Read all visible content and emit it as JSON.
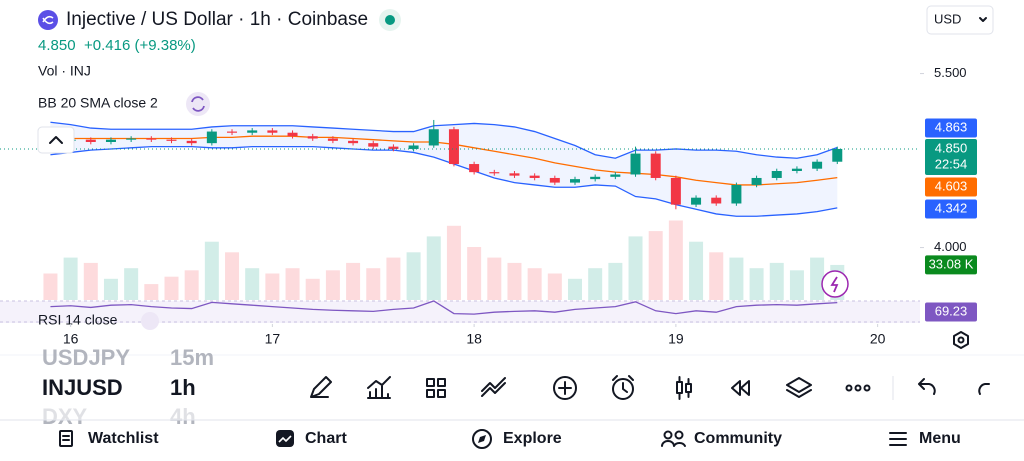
{
  "header": {
    "title": "Injective / US Dollar · 1h · Coinbase",
    "price": "4.850",
    "change": "+0.416 (+9.38%)",
    "currency": "USD"
  },
  "chart_data": {
    "type": "candlestick",
    "indicators": [
      "Vol · INJ",
      "BB 20 SMA close 2",
      "RSI 14 close"
    ],
    "x": [
      15.9,
      16.0,
      16.1,
      16.2,
      16.3,
      16.4,
      16.5,
      16.6,
      16.7,
      16.8,
      16.9,
      17.0,
      17.1,
      17.2,
      17.3,
      17.4,
      17.5,
      17.6,
      17.7,
      17.8,
      17.9,
      18.0,
      18.1,
      18.2,
      18.3,
      18.4,
      18.5,
      18.6,
      18.7,
      18.8,
      18.9,
      19.0,
      19.1,
      19.2,
      19.3,
      19.4,
      19.5,
      19.6,
      19.7,
      19.8
    ],
    "open": [
      4.93,
      4.92,
      4.93,
      4.91,
      4.93,
      4.94,
      4.93,
      4.92,
      4.9,
      5.0,
      4.99,
      5.01,
      4.99,
      4.96,
      4.94,
      4.92,
      4.9,
      4.87,
      4.85,
      4.88,
      5.02,
      4.72,
      4.65,
      4.64,
      4.62,
      4.6,
      4.56,
      4.59,
      4.61,
      4.63,
      4.81,
      4.6,
      4.37,
      4.43,
      4.38,
      4.54,
      4.6,
      4.66,
      4.68,
      4.74
    ],
    "high": [
      4.95,
      4.95,
      4.95,
      4.95,
      4.96,
      4.96,
      4.95,
      4.94,
      5.02,
      5.02,
      5.03,
      5.03,
      5.01,
      4.98,
      4.96,
      4.94,
      4.92,
      4.89,
      4.9,
      5.1,
      5.04,
      4.74,
      4.67,
      4.66,
      4.64,
      4.62,
      4.61,
      4.63,
      4.65,
      4.87,
      4.83,
      4.62,
      4.45,
      4.45,
      4.56,
      4.62,
      4.68,
      4.7,
      4.76,
      4.87
    ],
    "low": [
      4.9,
      4.9,
      4.89,
      4.89,
      4.91,
      4.91,
      4.9,
      4.88,
      4.88,
      4.97,
      4.97,
      4.97,
      4.94,
      4.92,
      4.9,
      4.88,
      4.85,
      4.83,
      4.83,
      4.86,
      4.7,
      4.63,
      4.62,
      4.6,
      4.58,
      4.54,
      4.54,
      4.57,
      4.59,
      4.61,
      4.58,
      4.33,
      4.35,
      4.36,
      4.36,
      4.52,
      4.58,
      4.64,
      4.66,
      4.72
    ],
    "close": [
      4.92,
      4.93,
      4.91,
      4.93,
      4.94,
      4.93,
      4.92,
      4.9,
      5.0,
      4.99,
      5.01,
      4.99,
      4.96,
      4.94,
      4.92,
      4.9,
      4.87,
      4.85,
      4.88,
      5.02,
      4.72,
      4.65,
      4.64,
      4.62,
      4.6,
      4.56,
      4.59,
      4.61,
      4.63,
      4.81,
      4.6,
      4.37,
      4.43,
      4.38,
      4.54,
      4.6,
      4.66,
      4.68,
      4.74,
      4.85
    ],
    "close_label": "4.850",
    "countdown": "22:54",
    "volume": [
      25,
      40,
      35,
      20,
      30,
      15,
      22,
      28,
      55,
      45,
      30,
      25,
      30,
      20,
      28,
      35,
      30,
      40,
      45,
      60,
      70,
      50,
      40,
      35,
      30,
      25,
      20,
      30,
      35,
      60,
      65,
      75,
      55,
      45,
      40,
      30,
      35,
      28,
      40,
      33.08
    ],
    "volume_label": "33.08 K",
    "bb": {
      "upper": [
        5.08,
        5.06,
        5.03,
        5.02,
        5.02,
        5.02,
        5.02,
        5.02,
        5.04,
        5.05,
        5.05,
        5.05,
        5.05,
        5.04,
        5.03,
        5.02,
        5.01,
        5.0,
        5.0,
        5.05,
        5.06,
        5.07,
        5.06,
        5.04,
        5.0,
        4.94,
        4.88,
        4.8,
        4.77,
        4.84,
        4.84,
        4.85,
        4.84,
        4.84,
        4.83,
        4.8,
        4.78,
        4.77,
        4.8,
        4.863
      ],
      "middle": [
        4.94,
        4.94,
        4.94,
        4.94,
        4.94,
        4.94,
        4.94,
        4.94,
        4.95,
        4.95,
        4.96,
        4.96,
        4.96,
        4.95,
        4.95,
        4.94,
        4.93,
        4.92,
        4.91,
        4.91,
        4.89,
        4.86,
        4.83,
        4.8,
        4.77,
        4.73,
        4.7,
        4.67,
        4.65,
        4.64,
        4.63,
        4.61,
        4.58,
        4.56,
        4.54,
        4.54,
        4.55,
        4.56,
        4.58,
        4.603
      ],
      "lower": [
        4.8,
        4.82,
        4.84,
        4.85,
        4.86,
        4.87,
        4.87,
        4.87,
        4.86,
        4.86,
        4.87,
        4.87,
        4.87,
        4.87,
        4.86,
        4.85,
        4.84,
        4.84,
        4.82,
        4.78,
        4.72,
        4.66,
        4.6,
        4.56,
        4.54,
        4.52,
        4.52,
        4.54,
        4.53,
        4.44,
        4.42,
        4.37,
        4.33,
        4.29,
        4.27,
        4.27,
        4.28,
        4.29,
        4.31,
        4.342
      ],
      "upper_label": "4.863",
      "middle_label": "4.603",
      "lower_label": "4.342",
      "band_color": "#2962ff",
      "middle_color": "#ff6d00"
    },
    "rsi": [
      55,
      58,
      52,
      60,
      62,
      55,
      50,
      48,
      70,
      65,
      60,
      55,
      50,
      45,
      42,
      40,
      38,
      45,
      50,
      75,
      30,
      28,
      35,
      38,
      40,
      35,
      45,
      50,
      55,
      72,
      40,
      30,
      40,
      35,
      55,
      60,
      62,
      60,
      65,
      69.23
    ],
    "rsi_label": "69.23",
    "rsi_color": "#7e57c2",
    "up_color": "#089981",
    "down_color": "#f23645",
    "xlim": [
      15.65,
      20.21
    ],
    "ylim": [
      3.548,
      5.66
    ],
    "xticks": [
      16,
      17,
      18,
      19,
      20
    ],
    "yticks": [
      {
        "value": 5.5,
        "label": "5.500"
      },
      {
        "value": 4,
        "label": "4.000"
      }
    ]
  },
  "watchlist": [
    {
      "symbol": "USDJPY",
      "interval": "15m"
    },
    {
      "symbol": "INJUSD",
      "interval": "1h"
    },
    {
      "symbol": "DXY",
      "interval": "4h"
    }
  ],
  "nav": [
    "Watchlist",
    "Chart",
    "Explore",
    "Community",
    "Menu"
  ]
}
